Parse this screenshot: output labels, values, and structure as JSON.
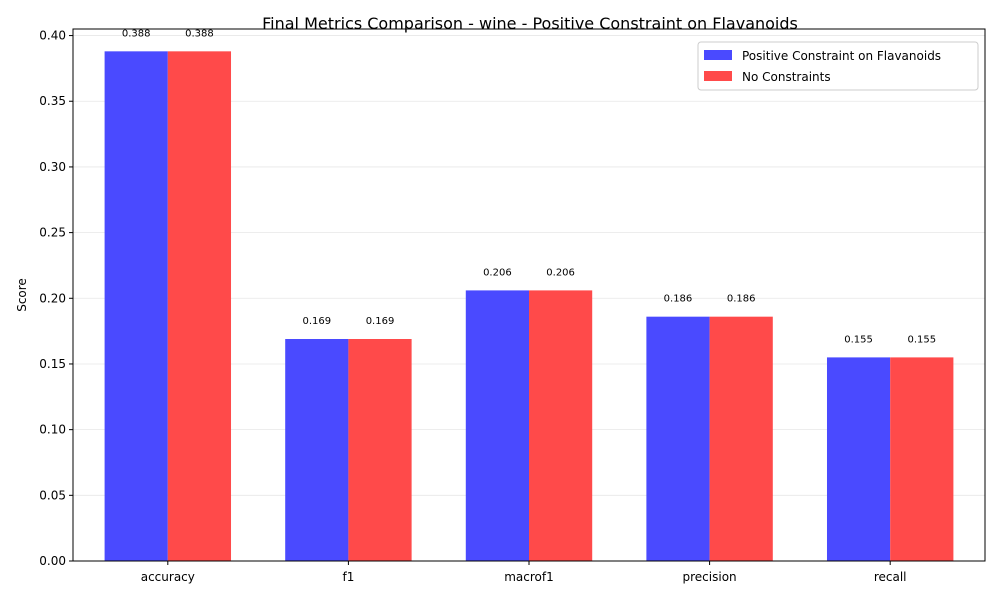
{
  "chart_data": {
    "type": "bar",
    "title": "Final Metrics Comparison - wine - Positive Constraint on Flavanoids",
    "xlabel": "",
    "ylabel": "Score",
    "categories": [
      "accuracy",
      "f1",
      "macrof1",
      "precision",
      "recall"
    ],
    "series": [
      {
        "name": "Positive Constraint on Flavanoids",
        "color": "#4a4aff",
        "values": [
          0.388,
          0.169,
          0.206,
          0.186,
          0.155
        ],
        "labels": [
          "0.388",
          "0.169",
          "0.206",
          "0.186",
          "0.155"
        ]
      },
      {
        "name": "No Constraints",
        "color": "#ff4a4a",
        "values": [
          0.388,
          0.169,
          0.206,
          0.186,
          0.155
        ],
        "labels": [
          "0.388",
          "0.169",
          "0.206",
          "0.186",
          "0.155"
        ]
      }
    ],
    "ylim": [
      0,
      0.405
    ],
    "yticks": [
      0.0,
      0.05,
      0.1,
      0.15,
      0.2,
      0.25,
      0.3,
      0.35,
      0.4
    ],
    "ytick_labels": [
      "0.00",
      "0.05",
      "0.10",
      "0.15",
      "0.20",
      "0.25",
      "0.30",
      "0.35",
      "0.40"
    ],
    "grid": "y",
    "legend": "top-right"
  }
}
